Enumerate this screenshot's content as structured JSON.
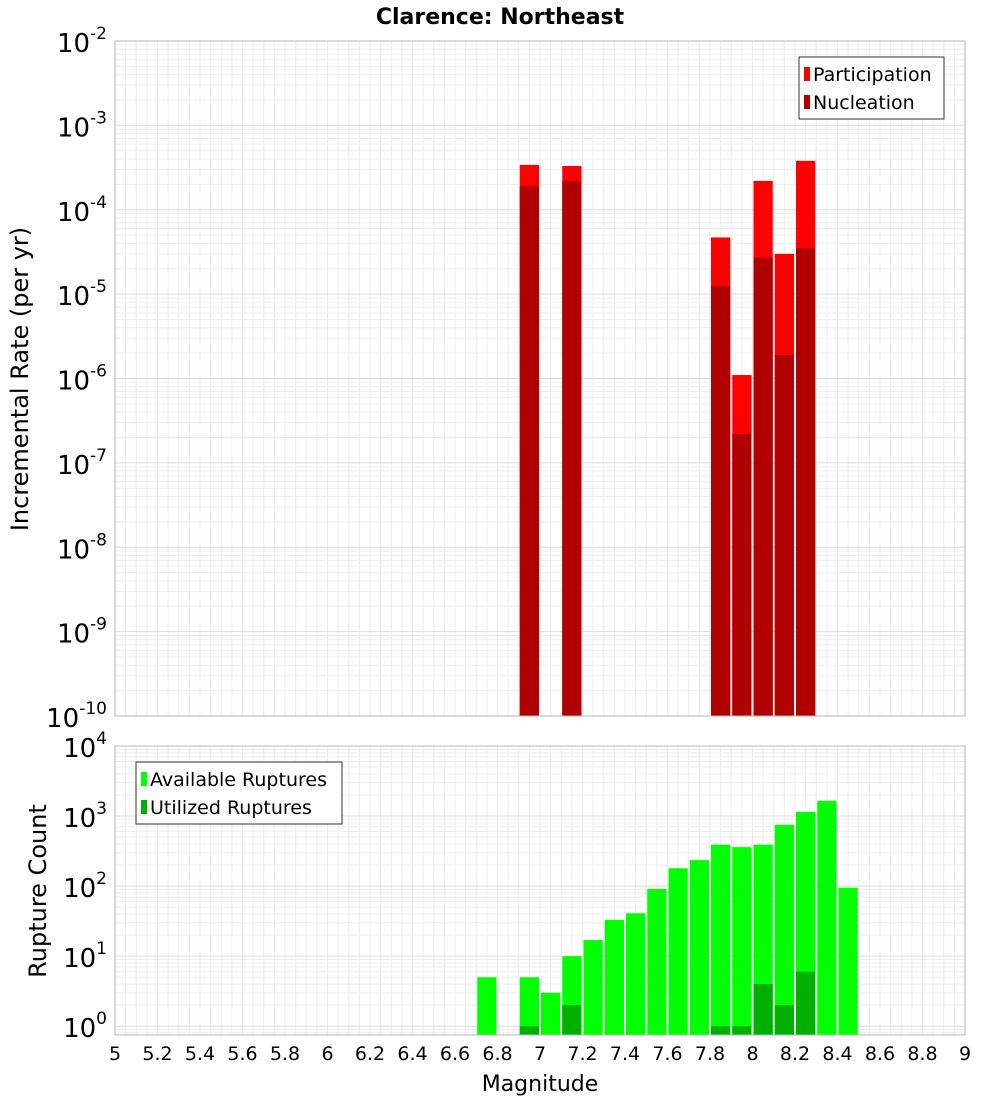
{
  "chart_data": [
    {
      "type": "bar",
      "title": "Clarence: Northeast",
      "xlabel": "",
      "ylabel": "Incremental Rate (per yr)",
      "yscale": "log",
      "xlim": [
        5,
        9
      ],
      "ylim": [
        1e-10,
        0.01
      ],
      "y_tick_exponents": [
        -10,
        -9,
        -8,
        -7,
        -6,
        -5,
        -4,
        -3,
        -2
      ],
      "grid": true,
      "legend_position": "top-right",
      "colors": {
        "Participation": "#ff0000",
        "Nucleation": "#b00000"
      },
      "series": [
        {
          "name": "Participation",
          "x": [
            6.95,
            7.15,
            7.85,
            7.95,
            8.05,
            8.15,
            8.25
          ],
          "values": [
            0.00034,
            0.00033,
            4.7e-05,
            1.1e-06,
            0.00022,
            3e-05,
            0.00038
          ]
        },
        {
          "name": "Nucleation",
          "x": [
            6.95,
            7.15,
            7.85,
            7.95,
            8.05,
            8.15,
            8.25
          ],
          "values": [
            0.00019,
            0.00022,
            1.25e-05,
            2.2e-07,
            2.7e-05,
            1.9e-06,
            3.5e-05
          ]
        }
      ]
    },
    {
      "type": "bar",
      "title": "",
      "xlabel": "Magnitude",
      "ylabel": "Rupture Count",
      "yscale": "log",
      "xlim": [
        5,
        9
      ],
      "ylim": [
        0.75,
        10000
      ],
      "y_tick_exponents": [
        0,
        1,
        2,
        3,
        4
      ],
      "x_ticks": [
        "5",
        "5.2",
        "5.4",
        "5.6",
        "5.8",
        "6",
        "6.2",
        "6.4",
        "6.6",
        "6.8",
        "7",
        "7.2",
        "7.4",
        "7.6",
        "7.8",
        "8",
        "8.2",
        "8.4",
        "8.6",
        "8.8",
        "9"
      ],
      "grid": true,
      "legend_position": "top-left",
      "colors": {
        "Available Ruptures": "#00ff00",
        "Utilized Ruptures": "#00b000"
      },
      "series": [
        {
          "name": "Available Ruptures",
          "x": [
            6.75,
            6.95,
            7.05,
            7.15,
            7.25,
            7.35,
            7.45,
            7.55,
            7.65,
            7.75,
            7.85,
            7.95,
            8.05,
            8.15,
            8.25,
            8.35,
            8.45
          ],
          "values": [
            5,
            5,
            3,
            10,
            17,
            33,
            41,
            91,
            180,
            235,
            390,
            360,
            390,
            750,
            1150,
            1650,
            95
          ]
        },
        {
          "name": "Utilized Ruptures",
          "x": [
            6.95,
            7.15,
            7.85,
            7.95,
            8.05,
            8.15,
            8.25
          ],
          "values": [
            1,
            2,
            1,
            1,
            4,
            2,
            6
          ]
        }
      ]
    }
  ]
}
